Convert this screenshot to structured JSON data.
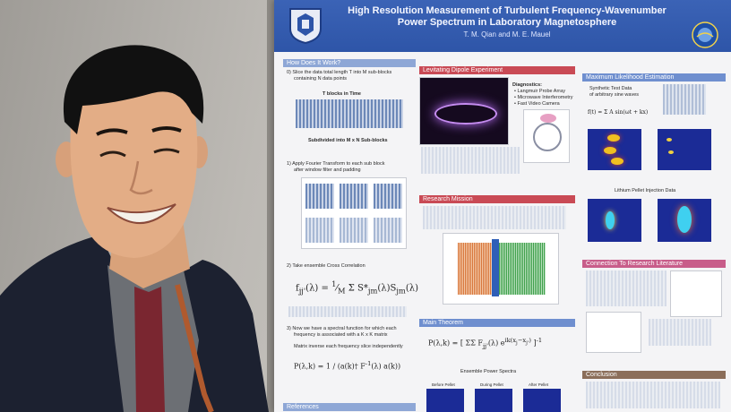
{
  "poster": {
    "title_line1": "High Resolution Measurement of Turbulent Frequency-Wavenumber",
    "title_line2": "Power Spectrum in Laboratory Magnetosphere",
    "authors": "T. M. Qian and M. E. Mauel",
    "sections": {
      "how": "How Does It Work?",
      "levitating": "Levitating Dipole Experiment",
      "mle": "Maximum Likelihood Estimation",
      "mission": "Research Mission",
      "literature": "Connection To Research Literature",
      "theorem": "Main Theorem",
      "conclusion": "Conclusion",
      "references": "References"
    },
    "step0": "0)  Slice the data total length T into M sub-blocks",
    "step0b": "containing N data points",
    "tblocks": "T blocks in Time",
    "subdivided": "Subdivided into M x N Sub-blocks",
    "step1": "1)  Apply Fourier Transform to each sub block",
    "step1b": "after window filter and padding",
    "step2": "2)  Take ensemble Cross Correlation",
    "step3": "3)  Now we have a spectral function for which each",
    "step3b": "frequency is associated with a K x K matrix",
    "step3c": "Matrix inverse each frequency slice independently",
    "diagnostics": "Diagnostics:",
    "diag1": "•  Langmuir Probe Array",
    "diag2": "•  Microwave Interferometry",
    "diag3": "•  Fast Video Camera",
    "synthetic": "Synthetic Test Data",
    "synthetic2": "of arbitrary sine waves",
    "pellet": "Lithium Pellet Injection Data",
    "ensemble": "Ensemble Power Spectra",
    "before": "Before Pellet",
    "during": "During Pellet",
    "after": "After Pellet"
  }
}
